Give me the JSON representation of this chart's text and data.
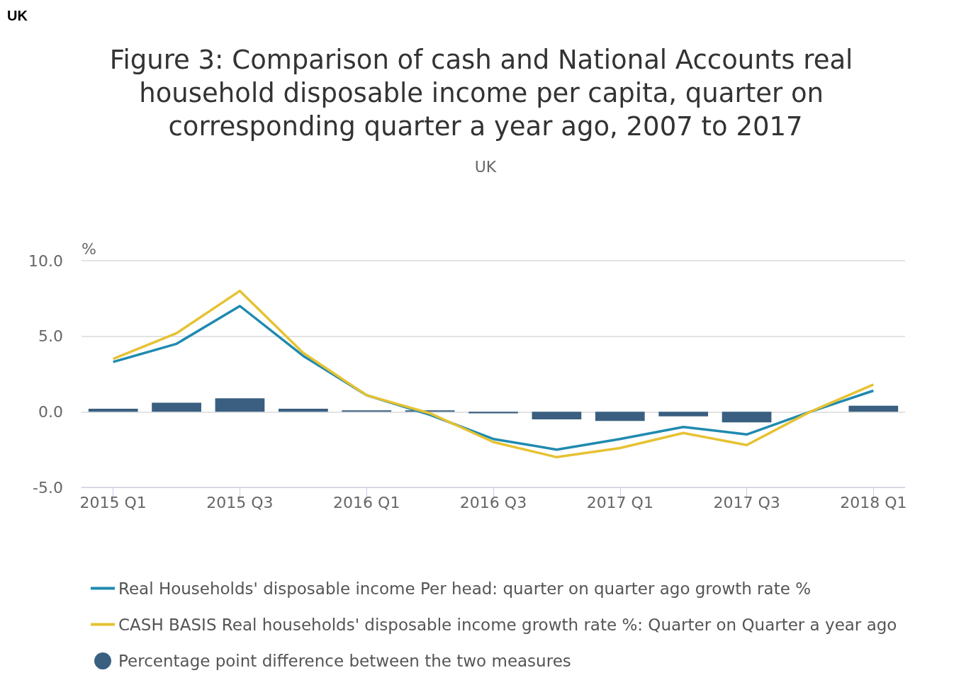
{
  "chart_data": {
    "type": "line",
    "title": "Figure 3: Comparison of cash and National Accounts real household disposable income per capita, quarter on corresponding quarter a year ago, 2007 to 2017",
    "subtitle": "UK",
    "ylabel": "%",
    "annotations": [
      "UK"
    ],
    "categories": [
      "2015 Q1",
      null,
      "2015 Q3",
      null,
      "2016 Q1",
      null,
      "2016 Q3",
      null,
      "2017 Q1",
      null,
      "2017 Q3",
      null,
      "2018 Q1"
    ],
    "series": [
      {
        "name": "Percentage point difference between the two measures",
        "type": "bar",
        "color": "#3a5f80",
        "values": [
          0.2,
          0.6,
          0.9,
          0.2,
          0.1,
          0.1,
          -0.1,
          -0.5,
          -0.6,
          -0.3,
          -0.7,
          0.0,
          0.4
        ]
      },
      {
        "name": "Real Households' disposable income Per head: quarter on quarter ago growth rate %",
        "color": "#1f8ab0",
        "values": [
          3.3,
          4.5,
          7.0,
          3.7,
          1.1,
          -0.2,
          -1.8,
          -2.5,
          -1.8,
          -1.0,
          -1.5,
          0.0,
          1.4
        ]
      },
      {
        "name": "CASH BASIS Real households' disposable income growth rate %: Quarter on Quarter a year ago",
        "color": "#e6c232",
        "values": [
          3.5,
          5.2,
          8.0,
          3.9,
          1.1,
          -0.1,
          -2.0,
          -3.0,
          -2.4,
          -1.4,
          -2.2,
          0.0,
          1.8
        ]
      }
    ],
    "ylim": [
      -5,
      10
    ],
    "yticks": [
      {
        "value": -5,
        "label": "-5.0"
      },
      {
        "value": 0,
        "label": "0.0"
      },
      {
        "value": 5,
        "label": "5.0"
      },
      {
        "value": 10,
        "label": "10.0"
      }
    ],
    "grid": "y",
    "legend": "bottom",
    "marker": "none"
  }
}
